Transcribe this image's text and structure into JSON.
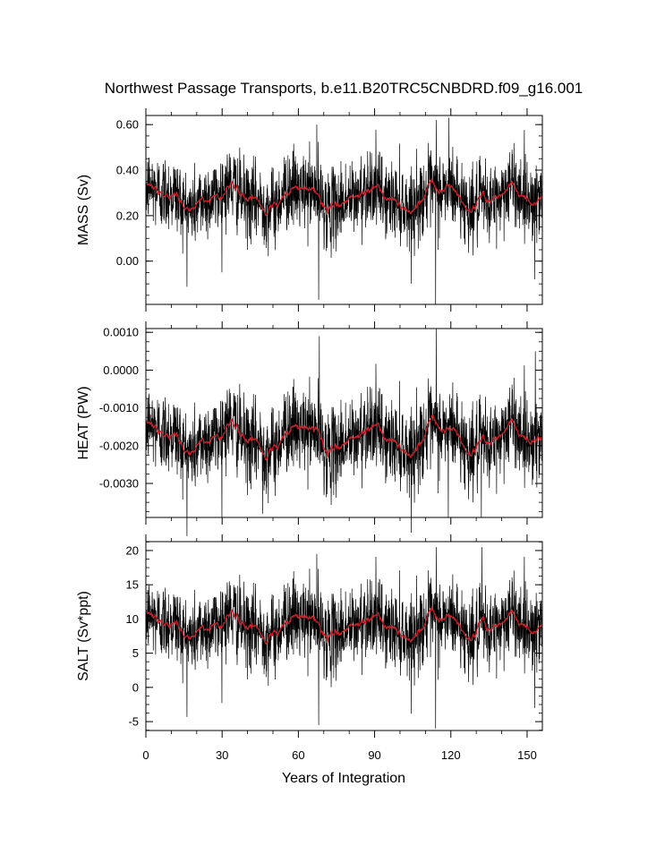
{
  "chart_data": {
    "type": "line",
    "title": "Northwest Passage Transports, b.e11.B20TRC5CNBDRD.f09_g16.001",
    "xlabel": "Years of Integration",
    "xlim": [
      0,
      156
    ],
    "x_ticks": [
      "0",
      "30",
      "60",
      "90",
      "120",
      "150"
    ],
    "x_tick_values": [
      0,
      30,
      60,
      90,
      120,
      150
    ],
    "legend": "none",
    "grid": false,
    "colors": {
      "raw": "#000000",
      "smoothed": "#d0202a"
    },
    "panels": [
      {
        "ylabel": "MASS (Sv)",
        "ylim": [
          -0.19,
          0.64
        ],
        "y_ticks": [
          "0.60",
          "0.40",
          "0.20",
          "0.00"
        ],
        "y_tick_values": [
          0.6,
          0.4,
          0.2,
          0.0
        ],
        "mean": 0.28,
        "noise_sd": 0.085,
        "smooth_amplitude": 0.04,
        "min_spikes": [
          [
            68,
            -0.17
          ],
          [
            114,
            -0.19
          ],
          [
            153,
            -0.08
          ]
        ],
        "max_spikes": [
          [
            67,
            0.6
          ],
          [
            114,
            0.62
          ],
          [
            119,
            0.63
          ]
        ]
      },
      {
        "ylabel": "HEAT (PW)",
        "ylim": [
          -0.0039,
          0.0011
        ],
        "y_ticks": [
          "0.0010",
          "0.0000",
          "-0.0010",
          "-0.0020",
          "-0.0030"
        ],
        "y_tick_values": [
          0.001,
          0.0,
          -0.001,
          -0.002,
          -0.003
        ],
        "mean": -0.0018,
        "noise_sd": 0.00055,
        "smooth_amplitude": 0.0003,
        "min_spikes": [
          [
            119,
            -0.0039
          ],
          [
            132,
            -0.0039
          ],
          [
            46,
            -0.0038
          ]
        ],
        "max_spikes": [
          [
            68,
            0.0009
          ],
          [
            114,
            0.0011
          ],
          [
            153,
            0.0005
          ]
        ]
      },
      {
        "ylabel": "SALT (Sv*ppt)",
        "ylim": [
          -6.3,
          21.3
        ],
        "y_ticks": [
          "20",
          "15",
          "10",
          "5",
          "0",
          "-5"
        ],
        "y_tick_values": [
          20,
          15,
          10,
          5,
          0,
          -5
        ],
        "mean": 9.0,
        "noise_sd": 2.9,
        "smooth_amplitude": 1.3,
        "min_spikes": [
          [
            68,
            -5.5
          ],
          [
            114,
            -6.0
          ],
          [
            153,
            -3.0
          ]
        ],
        "max_spikes": [
          [
            67,
            19.5
          ],
          [
            114,
            20.5
          ],
          [
            132,
            20.5
          ]
        ]
      }
    ]
  }
}
